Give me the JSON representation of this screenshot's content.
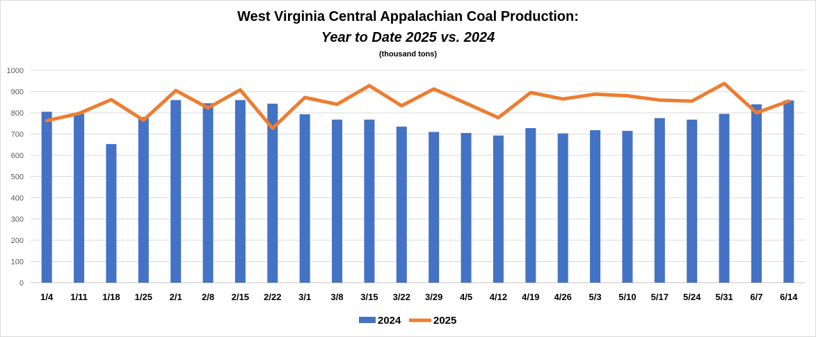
{
  "chart_data": {
    "type": "bar",
    "title": "West Virginia Central Appalachian Coal Production:",
    "subtitle": "Year to Date 2025 vs. 2024",
    "units": "(thousand tons)",
    "categories": [
      "1/4",
      "1/11",
      "1/18",
      "1/25",
      "2/1",
      "2/8",
      "2/15",
      "2/22",
      "3/1",
      "3/8",
      "3/15",
      "3/22",
      "3/29",
      "4/5",
      "4/12",
      "4/19",
      "4/26",
      "5/3",
      "5/10",
      "5/17",
      "5/24",
      "5/31",
      "6/7",
      "6/14"
    ],
    "ylim": [
      0,
      1000
    ],
    "yticks": [
      "0",
      "100",
      "200",
      "300",
      "400",
      "500",
      "600",
      "700",
      "800",
      "900",
      "1000"
    ],
    "grid": true,
    "legend_position": "bottom-center",
    "series": [
      {
        "name": "2024",
        "type": "bar",
        "color": "#4472c4",
        "values": [
          805,
          795,
          653,
          780,
          860,
          845,
          860,
          843,
          793,
          768,
          768,
          735,
          710,
          705,
          693,
          728,
          703,
          718,
          715,
          775,
          768,
          795,
          840,
          858
        ]
      },
      {
        "name": "2025",
        "type": "line",
        "color": "#ed7d31",
        "values": [
          763,
          797,
          862,
          765,
          905,
          823,
          908,
          727,
          872,
          840,
          928,
          833,
          912,
          845,
          777,
          895,
          865,
          888,
          880,
          860,
          855,
          938,
          800,
          855
        ]
      }
    ]
  }
}
